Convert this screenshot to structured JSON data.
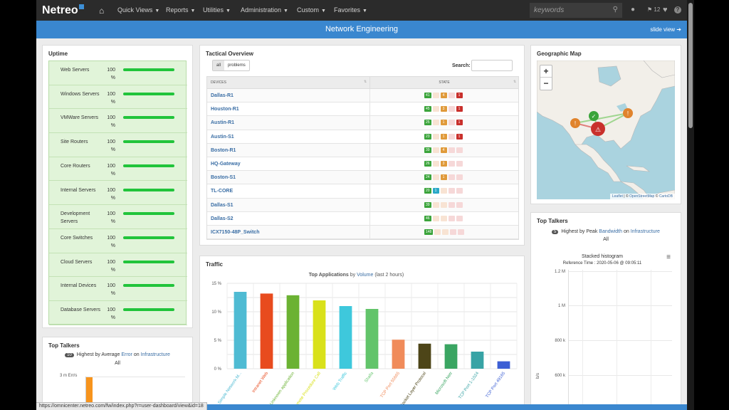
{
  "topnav": {
    "logo": "Netreo",
    "home_icon": "home-icon",
    "items": [
      {
        "label": "Quick Views"
      },
      {
        "label": "Reports"
      },
      {
        "label": "Utilities"
      },
      {
        "label": "Administration"
      },
      {
        "label": "Custom"
      },
      {
        "label": "Favorites"
      }
    ],
    "search_placeholder": "keywords",
    "alert_count": "12"
  },
  "titlebar": {
    "title": "Network Engineering",
    "slide_view": "slide view"
  },
  "uptime": {
    "title": "Uptime",
    "rows": [
      {
        "name": "Web Servers",
        "pct": "100 %",
        "value": 100
      },
      {
        "name": "Windows Servers",
        "pct": "100 %",
        "value": 100
      },
      {
        "name": "VMWare Servers",
        "pct": "100 %",
        "value": 100
      },
      {
        "name": "Site Routers",
        "pct": "100 %",
        "value": 100
      },
      {
        "name": "Core Routers",
        "pct": "100 %",
        "value": 100
      },
      {
        "name": "Internal Servers",
        "pct": "100 %",
        "value": 100
      },
      {
        "name": "Development Servers",
        "pct": "100 %",
        "value": 100
      },
      {
        "name": "Core Switches",
        "pct": "100 %",
        "value": 100
      },
      {
        "name": "Cloud Servers",
        "pct": "100 %",
        "value": 100
      },
      {
        "name": "Internal Devices",
        "pct": "100 %",
        "value": 100
      },
      {
        "name": "Database Servers",
        "pct": "100 %",
        "value": 100
      }
    ]
  },
  "tactical": {
    "title": "Tactical Overview",
    "filter_all": "all",
    "filter_problems": "problems",
    "search_label": "Search:",
    "col_devices": "DEVICES",
    "col_state": "STATE",
    "rows": [
      {
        "name": "Dallas-R1",
        "badges": [
          [
            "g",
            "41"
          ],
          [
            "e",
            ""
          ],
          [
            "o",
            "4"
          ],
          [
            "er",
            ""
          ],
          [
            "r",
            "1"
          ]
        ]
      },
      {
        "name": "Houston-R1",
        "badges": [
          [
            "g",
            "45"
          ],
          [
            "e",
            ""
          ],
          [
            "o",
            "3"
          ],
          [
            "er",
            ""
          ],
          [
            "r",
            "1"
          ]
        ]
      },
      {
        "name": "Austin-R1",
        "badges": [
          [
            "g",
            "25"
          ],
          [
            "e",
            ""
          ],
          [
            "o",
            "1"
          ],
          [
            "er",
            ""
          ],
          [
            "r",
            "1"
          ]
        ]
      },
      {
        "name": "Austin-S1",
        "badges": [
          [
            "g",
            "23"
          ],
          [
            "e",
            ""
          ],
          [
            "o",
            "1"
          ],
          [
            "er",
            ""
          ],
          [
            "r",
            "1"
          ]
        ]
      },
      {
        "name": "Boston-R1",
        "badges": [
          [
            "g",
            "39"
          ],
          [
            "e",
            ""
          ],
          [
            "o",
            "4"
          ],
          [
            "er",
            ""
          ],
          [
            "er",
            ""
          ]
        ]
      },
      {
        "name": "HQ-Gateway",
        "badges": [
          [
            "g",
            "26"
          ],
          [
            "e",
            ""
          ],
          [
            "o",
            "3"
          ],
          [
            "er",
            ""
          ],
          [
            "er",
            ""
          ]
        ]
      },
      {
        "name": "Boston-S1",
        "badges": [
          [
            "g",
            "24"
          ],
          [
            "e",
            ""
          ],
          [
            "o",
            "1"
          ],
          [
            "er",
            ""
          ],
          [
            "er",
            ""
          ]
        ]
      },
      {
        "name": "TL-CORE",
        "badges": [
          [
            "g",
            "20"
          ],
          [
            "b",
            "1"
          ],
          [
            "e",
            ""
          ],
          [
            "er",
            ""
          ],
          [
            "er",
            ""
          ]
        ]
      },
      {
        "name": "Dallas-S1",
        "badges": [
          [
            "g",
            "39"
          ],
          [
            "e",
            ""
          ],
          [
            "e",
            ""
          ],
          [
            "er",
            ""
          ],
          [
            "er",
            ""
          ]
        ]
      },
      {
        "name": "Dallas-S2",
        "badges": [
          [
            "g",
            "46"
          ],
          [
            "e",
            ""
          ],
          [
            "e",
            ""
          ],
          [
            "er",
            ""
          ],
          [
            "er",
            ""
          ]
        ]
      },
      {
        "name": "ICX7150-48P_Switch",
        "badges": [
          [
            "g",
            "148"
          ],
          [
            "e",
            ""
          ],
          [
            "e",
            ""
          ],
          [
            "er",
            ""
          ],
          [
            "er",
            ""
          ]
        ]
      }
    ]
  },
  "traffic": {
    "title": "Traffic",
    "chart_title_bold": "Top Applications",
    "chart_title_by": "by",
    "chart_title_link": "Volume",
    "chart_title_rest": "(last 2 hours)"
  },
  "chart_data": {
    "type": "bar",
    "title": "Top Applications by Volume (last 2 hours)",
    "categories": [
      "Simple Network M...",
      "Intranet Web",
      "Unknown application",
      "Remote Procedure Call",
      "Web Traffic",
      "Shalla",
      "TCP Port 55665",
      "Secure Socket Layer Protocol",
      "Microsoft Netr",
      "TCP Port 1-1024",
      "TCP Port 49165"
    ],
    "values": [
      13.5,
      13.2,
      12.9,
      12.0,
      11.0,
      10.5,
      5.1,
      4.4,
      4.3,
      3.0,
      1.3
    ],
    "colors": [
      "#4fbbd3",
      "#e84b1e",
      "#6bb233",
      "#d9e11a",
      "#3ec8dc",
      "#62c46a",
      "#f08b5a",
      "#4d4518",
      "#3aa562",
      "#37a3a5",
      "#3c5fd4"
    ],
    "label_colors": [
      "#4fbbd3",
      "#e84b1e",
      "#6bb233",
      "#d9e11a",
      "#3ec8dc",
      "#62c46a",
      "#f08b5a",
      "#4d4518",
      "#3aa562",
      "#37a3a5",
      "#3c5fd4"
    ],
    "yticks": [
      "15 %",
      "10 %",
      "5 %",
      "0 %"
    ],
    "ytick_values": [
      15,
      10,
      5,
      0
    ],
    "ylim": [
      0,
      15
    ]
  },
  "geomap": {
    "title": "Geographic Map",
    "zoom_in": "+",
    "zoom_out": "−",
    "attrib_leaflet": "Leaflet",
    "attrib_sep1": "| ©",
    "attrib_osm": "OpenStreetMap",
    "attrib_sep2": "©",
    "attrib_carto": "CartoDB"
  },
  "talkers_right": {
    "title": "Top Talkers",
    "badge": "5",
    "line1": "Highest by Peak",
    "link1": "Bandwidth",
    "on": "on",
    "link2": "Infrastructure",
    "scope": "All",
    "chart_title": "Stacked histogram",
    "ref_time": "Reference Time : 2020-05-06 @ 09:05:11",
    "yticks": [
      "1.2 M",
      "1 M",
      "800 k",
      "600 k"
    ],
    "yunit": "b/s"
  },
  "talkers_left": {
    "title": "Top Talkers",
    "badge": "10",
    "line1": "Highest by Average",
    "link1": "Error",
    "on": "on",
    "link2": "Infrastructure",
    "scope": "All",
    "ytick": "3 m Err/s"
  },
  "status_url": "https://omnicenter.netreo.com/fw/index.php?r=user-dashboard/view&id=18"
}
